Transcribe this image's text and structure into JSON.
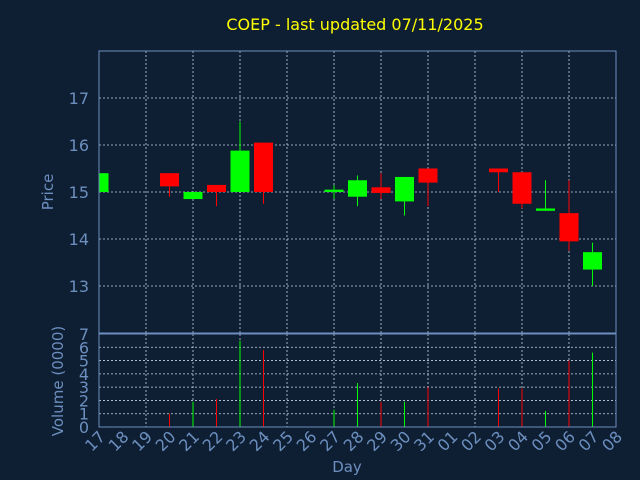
{
  "chart_data": {
    "type": "candlestick",
    "title": "COEP - last updated 07/11/2025",
    "xlabel": "Day",
    "price_ylabel": "Price",
    "volume_ylabel": "Volume (0000)",
    "price_ylim": [
      12.0,
      18.0
    ],
    "price_ticks": [
      13,
      14,
      15,
      16,
      17
    ],
    "volume_ylim": [
      0,
      7
    ],
    "volume_ticks": [
      0,
      1,
      2,
      3,
      4,
      5,
      6,
      7
    ],
    "grid": true,
    "x_ticks": [
      "17",
      "18",
      "19",
      "20",
      "21",
      "22",
      "23",
      "24",
      "25",
      "26",
      "27",
      "28",
      "29",
      "30",
      "31",
      "01",
      "02",
      "03",
      "04",
      "05",
      "06",
      "07",
      "08"
    ],
    "up_color": "#00ff00",
    "down_color": "#ff0000",
    "candles": [
      {
        "day": "17",
        "open": 15.0,
        "close": 15.4,
        "high": 15.4,
        "low": 15.0,
        "volume": 0.0
      },
      {
        "day": "20",
        "open": 15.4,
        "close": 15.12,
        "high": 15.4,
        "low": 14.9,
        "volume": 1.0
      },
      {
        "day": "21",
        "open": 14.85,
        "close": 15.0,
        "high": 15.0,
        "low": 14.85,
        "volume": 1.9
      },
      {
        "day": "22",
        "open": 15.15,
        "close": 15.0,
        "high": 15.15,
        "low": 14.7,
        "volume": 2.1
      },
      {
        "day": "23",
        "open": 15.0,
        "close": 15.88,
        "high": 16.5,
        "low": 15.0,
        "volume": 6.5
      },
      {
        "day": "24",
        "open": 16.05,
        "close": 15.0,
        "high": 16.05,
        "low": 14.75,
        "volume": 5.8
      },
      {
        "day": "27",
        "open": 15.0,
        "close": 15.05,
        "high": 15.15,
        "low": 14.85,
        "volume": 1.3
      },
      {
        "day": "28",
        "open": 14.9,
        "close": 15.25,
        "high": 15.35,
        "low": 14.7,
        "volume": 3.3
      },
      {
        "day": "29",
        "open": 15.1,
        "close": 14.98,
        "high": 15.4,
        "low": 14.85,
        "volume": 1.9
      },
      {
        "day": "30",
        "open": 14.8,
        "close": 15.32,
        "high": 15.32,
        "low": 14.5,
        "volume": 1.9
      },
      {
        "day": "31",
        "open": 15.5,
        "close": 15.2,
        "high": 15.5,
        "low": 14.7,
        "volume": 3.0
      },
      {
        "day": "03",
        "open": 15.5,
        "close": 15.42,
        "high": 15.5,
        "low": 15.0,
        "volume": 2.9
      },
      {
        "day": "04",
        "open": 15.42,
        "close": 14.75,
        "high": 15.42,
        "low": 14.65,
        "volume": 2.9
      },
      {
        "day": "05",
        "open": 14.6,
        "close": 14.65,
        "high": 15.25,
        "low": 14.6,
        "volume": 1.2
      },
      {
        "day": "06",
        "open": 14.55,
        "close": 13.95,
        "high": 15.25,
        "low": 13.75,
        "volume": 5.0
      },
      {
        "day": "07",
        "open": 13.35,
        "close": 13.72,
        "high": 13.92,
        "low": 13.0,
        "volume": 5.6
      }
    ]
  }
}
